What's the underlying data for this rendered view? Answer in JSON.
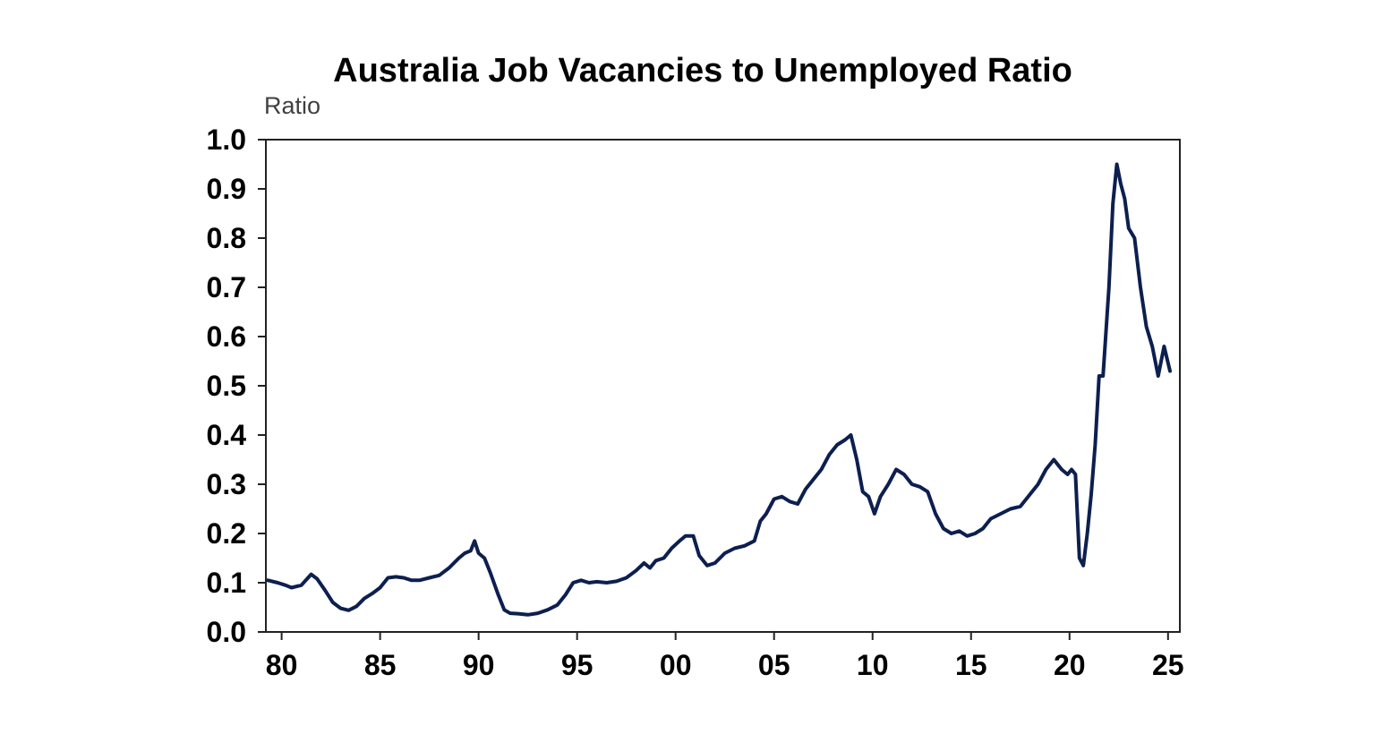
{
  "chart_data": {
    "type": "line",
    "title": "Australia Job Vacancies to Unemployed Ratio",
    "ylabel": "Ratio",
    "xlabel": "",
    "xlim": [
      1979.2,
      2025.6
    ],
    "ylim": [
      0,
      1.0
    ],
    "yticks": [
      0.0,
      0.1,
      0.2,
      0.3,
      0.4,
      0.5,
      0.6,
      0.7,
      0.8,
      0.9,
      1.0
    ],
    "ytick_labels": [
      "0.0",
      "0.1",
      "0.2",
      "0.3",
      "0.4",
      "0.5",
      "0.6",
      "0.7",
      "0.8",
      "0.9",
      "1.0"
    ],
    "xticks": [
      1980,
      1985,
      1990,
      1995,
      2000,
      2005,
      2010,
      2015,
      2020,
      2025
    ],
    "xtick_labels": [
      "80",
      "85",
      "90",
      "95",
      "00",
      "05",
      "10",
      "15",
      "20",
      "25"
    ],
    "grid": false,
    "line_color": "#0d1f4f",
    "series": [
      {
        "x": [
          1979.3,
          1979.8,
          1980.2,
          1980.5,
          1981.0,
          1981.5,
          1981.8,
          1982.2,
          1982.6,
          1983.0,
          1983.4,
          1983.8,
          1984.2,
          1984.6,
          1985.0,
          1985.4,
          1985.8,
          1986.2,
          1986.6,
          1987.0,
          1987.5,
          1988.0,
          1988.5,
          1989.0,
          1989.3,
          1989.6,
          1989.8,
          1990.0,
          1990.3,
          1990.6,
          1991.0,
          1991.3,
          1991.6,
          1992.0,
          1992.5,
          1993.0,
          1993.5,
          1994.0,
          1994.4,
          1994.8,
          1995.2,
          1995.6,
          1996.0,
          1996.5,
          1997.0,
          1997.5,
          1998.0,
          1998.4,
          1998.7,
          1999.0,
          1999.4,
          1999.8,
          2000.2,
          2000.5,
          2000.9,
          2001.2,
          2001.6,
          2002.0,
          2002.5,
          2003.0,
          2003.5,
          2004.0,
          2004.3,
          2004.6,
          2005.0,
          2005.4,
          2005.8,
          2006.2,
          2006.6,
          2007.0,
          2007.4,
          2007.8,
          2008.2,
          2008.6,
          2008.9,
          2009.2,
          2009.5,
          2009.8,
          2010.1,
          2010.4,
          2010.8,
          2011.2,
          2011.6,
          2012.0,
          2012.4,
          2012.8,
          2013.2,
          2013.6,
          2014.0,
          2014.4,
          2014.8,
          2015.2,
          2015.6,
          2016.0,
          2016.5,
          2017.0,
          2017.5,
          2018.0,
          2018.4,
          2018.8,
          2019.2,
          2019.6,
          2019.9,
          2020.1,
          2020.3,
          2020.5,
          2020.7,
          2020.9,
          2021.1,
          2021.3,
          2021.5,
          2021.7,
          2022.0,
          2022.2,
          2022.4,
          2022.6,
          2022.8,
          2023.0,
          2023.3,
          2023.6,
          2023.9,
          2024.2,
          2024.5,
          2024.8,
          2025.1
        ],
        "y": [
          0.105,
          0.1,
          0.095,
          0.09,
          0.095,
          0.117,
          0.108,
          0.085,
          0.06,
          0.048,
          0.044,
          0.052,
          0.068,
          0.078,
          0.09,
          0.11,
          0.112,
          0.11,
          0.105,
          0.105,
          0.11,
          0.115,
          0.13,
          0.15,
          0.16,
          0.165,
          0.185,
          0.16,
          0.15,
          0.12,
          0.075,
          0.045,
          0.038,
          0.037,
          0.035,
          0.038,
          0.045,
          0.055,
          0.075,
          0.1,
          0.105,
          0.1,
          0.102,
          0.1,
          0.103,
          0.11,
          0.125,
          0.14,
          0.13,
          0.145,
          0.15,
          0.17,
          0.185,
          0.195,
          0.195,
          0.155,
          0.135,
          0.14,
          0.16,
          0.17,
          0.175,
          0.185,
          0.225,
          0.24,
          0.27,
          0.275,
          0.265,
          0.26,
          0.29,
          0.31,
          0.33,
          0.36,
          0.38,
          0.39,
          0.4,
          0.35,
          0.285,
          0.275,
          0.24,
          0.275,
          0.3,
          0.33,
          0.32,
          0.3,
          0.295,
          0.285,
          0.24,
          0.21,
          0.2,
          0.205,
          0.195,
          0.2,
          0.21,
          0.23,
          0.24,
          0.25,
          0.255,
          0.28,
          0.3,
          0.33,
          0.35,
          0.33,
          0.32,
          0.33,
          0.32,
          0.15,
          0.135,
          0.2,
          0.28,
          0.38,
          0.52,
          0.52,
          0.7,
          0.87,
          0.95,
          0.91,
          0.88,
          0.82,
          0.8,
          0.7,
          0.62,
          0.58,
          0.52,
          0.58,
          0.53
        ]
      }
    ]
  }
}
